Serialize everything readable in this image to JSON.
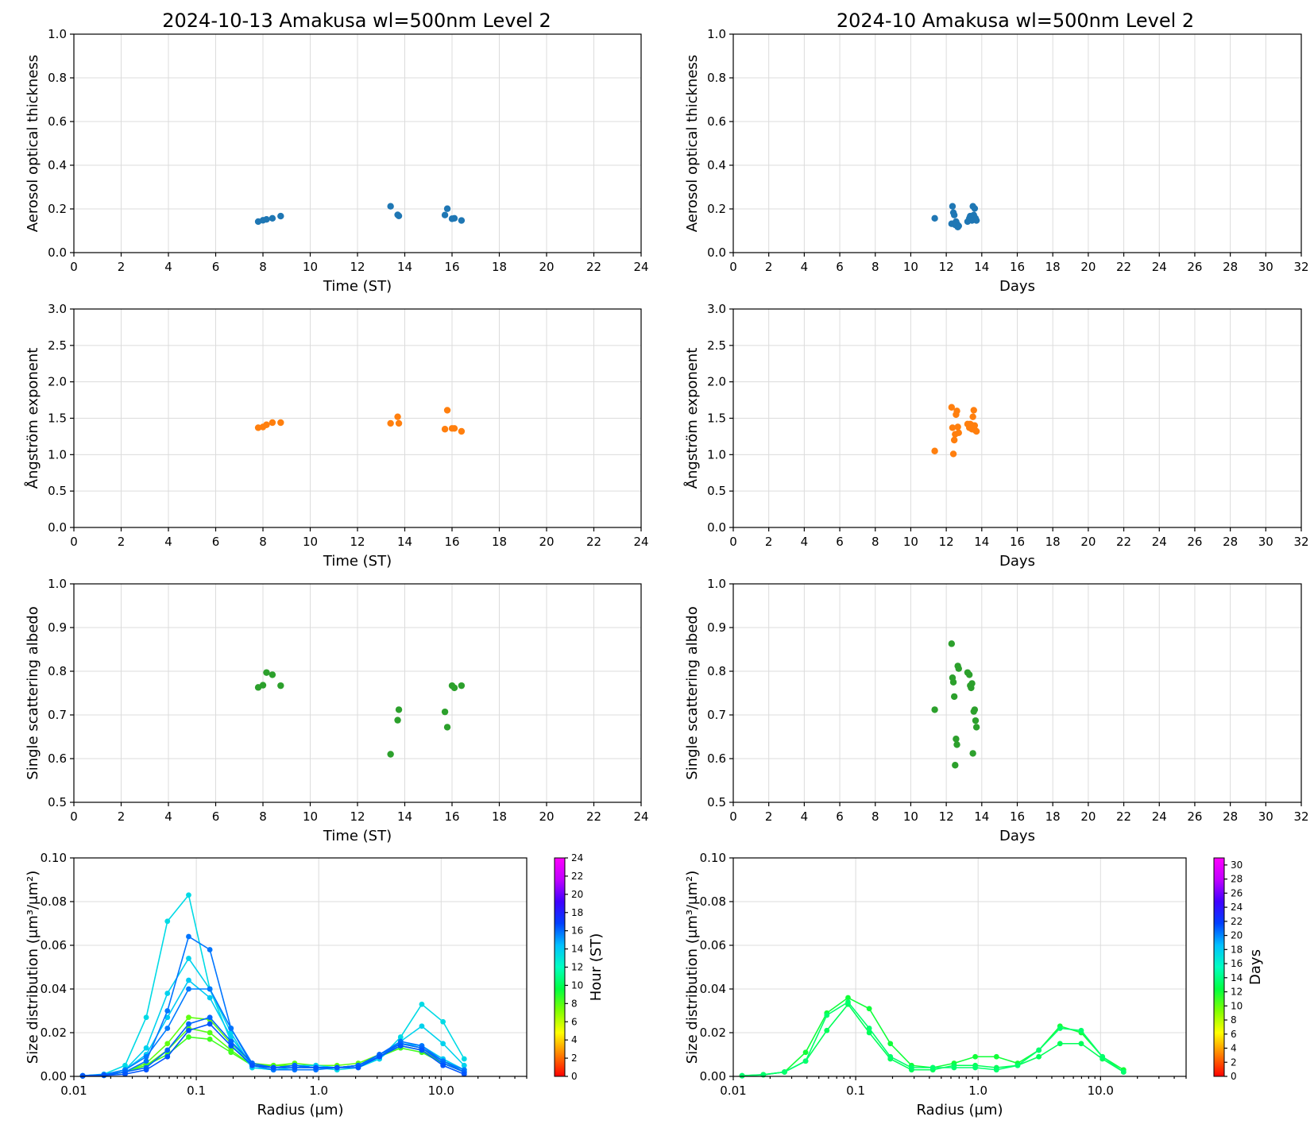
{
  "colors": {
    "aot": "#1f77b4",
    "angstrom": "#ff7f0e",
    "ssa": "#2ca02c",
    "grid": "#dcdcdc",
    "colormap": [
      "#ff0000",
      "#ff8000",
      "#ffff00",
      "#80ff00",
      "#00ff40",
      "#00ffc0",
      "#00c0ff",
      "#0040ff",
      "#4000ff",
      "#c000ff",
      "#ff00ff"
    ]
  },
  "chart_data": [
    {
      "id": "aot_daily",
      "type": "scatter",
      "title": "2024-10-13  Amakusa  wl=500nm  Level 2",
      "xlabel": "Time (ST)",
      "ylabel": "Aerosol optical thickness",
      "xlim": [
        0,
        24
      ],
      "ylim": [
        0,
        1.0
      ],
      "xticks": [
        0,
        2,
        4,
        6,
        8,
        10,
        12,
        14,
        16,
        18,
        20,
        22,
        24
      ],
      "yticks": [
        0.0,
        0.2,
        0.4,
        0.6,
        0.8,
        1.0
      ],
      "ytick_labels": [
        "0.0",
        "0.2",
        "0.4",
        "0.6",
        "0.8",
        "1.0"
      ],
      "x": [
        7.8,
        8.0,
        8.15,
        8.4,
        8.75,
        13.4,
        13.7,
        13.75,
        15.7,
        15.8,
        16.0,
        16.1,
        16.4
      ],
      "y": [
        0.142,
        0.148,
        0.152,
        0.157,
        0.167,
        0.212,
        0.173,
        0.168,
        0.172,
        0.201,
        0.155,
        0.157,
        0.147
      ]
    },
    {
      "id": "aot_monthly",
      "type": "scatter",
      "title": "2024-10  Amakusa  wl=500nm  Level 2",
      "xlabel": "Days",
      "ylabel": "Aerosol optical thickness",
      "xlim": [
        0,
        32
      ],
      "ylim": [
        0,
        1.0
      ],
      "xticks": [
        0,
        2,
        4,
        6,
        8,
        10,
        12,
        14,
        16,
        18,
        20,
        22,
        24,
        26,
        28,
        30,
        32
      ],
      "yticks": [
        0.0,
        0.2,
        0.4,
        0.6,
        0.8,
        1.0
      ],
      "ytick_labels": [
        "0.0",
        "0.2",
        "0.4",
        "0.6",
        "0.8",
        "1.0"
      ],
      "x": [
        11.35,
        12.3,
        12.35,
        12.4,
        12.45,
        12.5,
        12.55,
        12.6,
        12.65,
        12.7,
        13.2,
        13.3,
        13.35,
        13.4,
        13.45,
        13.5,
        13.55,
        13.6,
        13.65,
        13.7
      ],
      "y": [
        0.157,
        0.132,
        0.212,
        0.183,
        0.172,
        0.127,
        0.142,
        0.132,
        0.117,
        0.122,
        0.142,
        0.157,
        0.167,
        0.152,
        0.147,
        0.212,
        0.172,
        0.202,
        0.157,
        0.147
      ]
    },
    {
      "id": "angstrom_daily",
      "type": "scatter",
      "xlabel": "Time (ST)",
      "ylabel": "Ångström exponent",
      "xlim": [
        0,
        24
      ],
      "ylim": [
        0,
        3.0
      ],
      "xticks": [
        0,
        2,
        4,
        6,
        8,
        10,
        12,
        14,
        16,
        18,
        20,
        22,
        24
      ],
      "yticks": [
        0.0,
        0.5,
        1.0,
        1.5,
        2.0,
        2.5,
        3.0
      ],
      "ytick_labels": [
        "0.0",
        "0.5",
        "1.0",
        "1.5",
        "2.0",
        "2.5",
        "3.0"
      ],
      "x": [
        7.8,
        8.0,
        8.15,
        8.4,
        8.75,
        13.4,
        13.7,
        13.75,
        15.7,
        15.8,
        16.0,
        16.1,
        16.4
      ],
      "y": [
        1.37,
        1.38,
        1.41,
        1.44,
        1.44,
        1.43,
        1.52,
        1.43,
        1.35,
        1.61,
        1.36,
        1.36,
        1.32
      ]
    },
    {
      "id": "angstrom_monthly",
      "type": "scatter",
      "xlabel": "Days",
      "ylabel": "Ångström exponent",
      "xlim": [
        0,
        32
      ],
      "ylim": [
        0,
        3.0
      ],
      "xticks": [
        0,
        2,
        4,
        6,
        8,
        10,
        12,
        14,
        16,
        18,
        20,
        22,
        24,
        26,
        28,
        30,
        32
      ],
      "yticks": [
        0.0,
        0.5,
        1.0,
        1.5,
        2.0,
        2.5,
        3.0
      ],
      "ytick_labels": [
        "0.0",
        "0.5",
        "1.0",
        "1.5",
        "2.0",
        "2.5",
        "3.0"
      ],
      "x": [
        11.35,
        12.3,
        12.35,
        12.4,
        12.45,
        12.5,
        12.55,
        12.6,
        12.65,
        12.7,
        13.2,
        13.3,
        13.35,
        13.4,
        13.45,
        13.5,
        13.55,
        13.6,
        13.65,
        13.7
      ],
      "y": [
        1.05,
        1.65,
        1.37,
        1.01,
        1.2,
        1.28,
        1.55,
        1.6,
        1.38,
        1.3,
        1.42,
        1.37,
        1.42,
        1.41,
        1.35,
        1.52,
        1.61,
        1.4,
        1.33,
        1.32
      ]
    },
    {
      "id": "ssa_daily",
      "type": "scatter",
      "xlabel": "Time (ST)",
      "ylabel": "Single scattering albedo",
      "xlim": [
        0,
        24
      ],
      "ylim": [
        0.5,
        1.0
      ],
      "xticks": [
        0,
        2,
        4,
        6,
        8,
        10,
        12,
        14,
        16,
        18,
        20,
        22,
        24
      ],
      "yticks": [
        0.5,
        0.6,
        0.7,
        0.8,
        0.9,
        1.0
      ],
      "ytick_labels": [
        "0.5",
        "0.6",
        "0.7",
        "0.8",
        "0.9",
        "1.0"
      ],
      "x": [
        7.8,
        8.0,
        8.15,
        8.4,
        8.75,
        13.4,
        13.7,
        13.75,
        15.7,
        15.8,
        16.0,
        16.1,
        16.4
      ],
      "y": [
        0.763,
        0.768,
        0.797,
        0.792,
        0.767,
        0.61,
        0.688,
        0.712,
        0.707,
        0.672,
        0.767,
        0.762,
        0.767
      ]
    },
    {
      "id": "ssa_monthly",
      "type": "scatter",
      "xlabel": "Days",
      "ylabel": "Single scattering albedo",
      "xlim": [
        0,
        32
      ],
      "ylim": [
        0.5,
        1.0
      ],
      "xticks": [
        0,
        2,
        4,
        6,
        8,
        10,
        12,
        14,
        16,
        18,
        20,
        22,
        24,
        26,
        28,
        30,
        32
      ],
      "yticks": [
        0.5,
        0.6,
        0.7,
        0.8,
        0.9,
        1.0
      ],
      "ytick_labels": [
        "0.5",
        "0.6",
        "0.7",
        "0.8",
        "0.9",
        "1.0"
      ],
      "x": [
        11.35,
        12.3,
        12.35,
        12.4,
        12.45,
        12.5,
        12.55,
        12.6,
        12.65,
        12.7,
        13.2,
        13.3,
        13.35,
        13.4,
        13.45,
        13.5,
        13.55,
        13.6,
        13.65,
        13.7
      ],
      "y": [
        0.712,
        0.863,
        0.785,
        0.775,
        0.742,
        0.585,
        0.645,
        0.632,
        0.812,
        0.806,
        0.797,
        0.792,
        0.767,
        0.762,
        0.772,
        0.612,
        0.708,
        0.712,
        0.687,
        0.672
      ]
    },
    {
      "id": "size_daily",
      "type": "line",
      "xlabel": "Radius (μm)",
      "ylabel": "Size distribution (μm³/μm²)",
      "xscale": "log",
      "xlim": [
        0.01,
        50
      ],
      "ylim": [
        0,
        0.1
      ],
      "xticks": [
        0.01,
        0.1,
        1.0,
        10.0
      ],
      "xtick_labels": [
        "0.01",
        "0.1",
        "1.0",
        "10.0"
      ],
      "yticks": [
        0.0,
        0.02,
        0.04,
        0.06,
        0.08,
        0.1
      ],
      "ytick_labels": [
        "0.00",
        "0.02",
        "0.04",
        "0.06",
        "0.08",
        "0.10"
      ],
      "radius": [
        0.0118,
        0.0176,
        0.0262,
        0.039,
        0.0581,
        0.0866,
        0.129,
        0.192,
        0.286,
        0.427,
        0.636,
        0.948,
        1.412,
        2.103,
        3.133,
        4.667,
        6.952,
        10.355,
        15.426
      ],
      "colorbar": {
        "label": "Hour (ST)",
        "min": 0,
        "max": 24,
        "ticks": [
          0,
          2,
          4,
          6,
          8,
          10,
          12,
          14,
          16,
          18,
          20,
          22,
          24
        ]
      },
      "series": [
        {
          "name": "7.8",
          "values": [
            0.0002,
            0.0005,
            0.002,
            0.006,
            0.015,
            0.027,
            0.026,
            0.015,
            0.006,
            0.005,
            0.006,
            0.005,
            0.005,
            0.006,
            0.01,
            0.015,
            0.013,
            0.007,
            0.003
          ]
        },
        {
          "name": "8.0",
          "values": [
            0.0002,
            0.0005,
            0.002,
            0.005,
            0.012,
            0.022,
            0.02,
            0.012,
            0.005,
            0.005,
            0.005,
            0.004,
            0.004,
            0.005,
            0.009,
            0.014,
            0.012,
            0.006,
            0.002
          ]
        },
        {
          "name": "8.4",
          "values": [
            0.0002,
            0.0004,
            0.002,
            0.005,
            0.01,
            0.018,
            0.017,
            0.011,
            0.005,
            0.004,
            0.005,
            0.004,
            0.004,
            0.005,
            0.009,
            0.013,
            0.011,
            0.006,
            0.002
          ]
        },
        {
          "name": "13.4",
          "values": [
            0.0003,
            0.001,
            0.005,
            0.027,
            0.071,
            0.083,
            0.04,
            0.016,
            0.004,
            0.003,
            0.004,
            0.004,
            0.003,
            0.004,
            0.008,
            0.018,
            0.033,
            0.025,
            0.008
          ]
        },
        {
          "name": "13.7",
          "values": [
            0.0003,
            0.0008,
            0.003,
            0.013,
            0.038,
            0.054,
            0.04,
            0.02,
            0.004,
            0.003,
            0.004,
            0.004,
            0.004,
            0.005,
            0.008,
            0.016,
            0.023,
            0.015,
            0.005
          ]
        },
        {
          "name": "14.0",
          "values": [
            0.0003,
            0.0008,
            0.003,
            0.01,
            0.027,
            0.044,
            0.036,
            0.018,
            0.005,
            0.004,
            0.005,
            0.005,
            0.004,
            0.005,
            0.009,
            0.015,
            0.014,
            0.008,
            0.003
          ]
        },
        {
          "name": "15.7",
          "values": [
            0.0003,
            0.0008,
            0.003,
            0.009,
            0.022,
            0.04,
            0.04,
            0.022,
            0.006,
            0.004,
            0.005,
            0.004,
            0.004,
            0.005,
            0.009,
            0.015,
            0.013,
            0.007,
            0.003
          ]
        },
        {
          "name": "15.8",
          "values": [
            0.0003,
            0.0008,
            0.002,
            0.007,
            0.03,
            0.064,
            0.058,
            0.022,
            0.005,
            0.003,
            0.003,
            0.003,
            0.004,
            0.005,
            0.01,
            0.016,
            0.014,
            0.007,
            0.002
          ]
        },
        {
          "name": "16.1",
          "values": [
            0.0002,
            0.0005,
            0.002,
            0.004,
            0.012,
            0.024,
            0.027,
            0.016,
            0.006,
            0.004,
            0.005,
            0.004,
            0.004,
            0.005,
            0.01,
            0.015,
            0.013,
            0.006,
            0.002
          ]
        },
        {
          "name": "16.4",
          "values": [
            0.0002,
            0.0004,
            0.001,
            0.003,
            0.009,
            0.021,
            0.024,
            0.014,
            0.005,
            0.004,
            0.004,
            0.004,
            0.004,
            0.004,
            0.009,
            0.014,
            0.012,
            0.005,
            0.001
          ]
        }
      ]
    },
    {
      "id": "size_monthly",
      "type": "line",
      "xlabel": "Radius (μm)",
      "ylabel": "Size distribution (μm³/μm²)",
      "xscale": "log",
      "xlim": [
        0.01,
        50
      ],
      "ylim": [
        0,
        0.1
      ],
      "xticks": [
        0.01,
        0.1,
        1.0,
        10.0
      ],
      "xtick_labels": [
        "0.01",
        "0.1",
        "1.0",
        "10.0"
      ],
      "yticks": [
        0.0,
        0.02,
        0.04,
        0.06,
        0.08,
        0.1
      ],
      "ytick_labels": [
        "0.00",
        "0.02",
        "0.04",
        "0.06",
        "0.08",
        "0.10"
      ],
      "radius": [
        0.0118,
        0.0176,
        0.0262,
        0.039,
        0.0581,
        0.0866,
        0.129,
        0.192,
        0.286,
        0.427,
        0.636,
        0.948,
        1.412,
        2.103,
        3.133,
        4.667,
        6.952,
        10.355,
        15.426
      ],
      "colorbar": {
        "label": "Days",
        "min": 0,
        "max": 31,
        "ticks": [
          0,
          2,
          4,
          6,
          8,
          10,
          12,
          14,
          16,
          18,
          20,
          22,
          24,
          26,
          28,
          30
        ]
      },
      "series": [
        {
          "name": "12",
          "values": [
            0.0003,
            0.0008,
            0.002,
            0.011,
            0.029,
            0.036,
            0.031,
            0.015,
            0.005,
            0.004,
            0.006,
            0.009,
            0.009,
            0.006,
            0.012,
            0.023,
            0.02,
            0.009,
            0.003
          ]
        },
        {
          "name": "13",
          "values": [
            0.0003,
            0.0007,
            0.002,
            0.007,
            0.021,
            0.033,
            0.02,
            0.008,
            0.003,
            0.003,
            0.005,
            0.005,
            0.004,
            0.005,
            0.009,
            0.015,
            0.015,
            0.008,
            0.002
          ]
        },
        {
          "name": "13.5",
          "values": [
            0.0003,
            0.0007,
            0.002,
            0.007,
            0.028,
            0.034,
            0.022,
            0.009,
            0.004,
            0.004,
            0.004,
            0.004,
            0.003,
            0.005,
            0.012,
            0.022,
            0.021,
            0.009,
            0.002
          ]
        }
      ]
    }
  ]
}
